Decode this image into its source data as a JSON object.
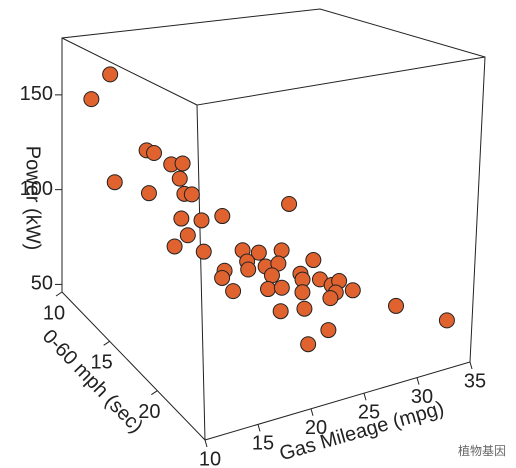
{
  "chart_data": {
    "type": "scatter3d",
    "xlabel": "Gas Mileage (mpg)",
    "ylabel": "0-60 mph (sec)",
    "zlabel": "Power (kW)",
    "x": [
      12.6,
      11.5,
      15.4,
      16.1,
      17.0,
      18.8,
      17.8,
      13.7,
      15.6,
      17.6,
      18.3,
      23.3,
      17.3,
      19.2,
      19.8,
      17.9,
      18.0,
      19.4,
      21.7,
      22.5,
      24.0,
      21.4,
      22.5,
      23.7,
      25.6,
      20.0,
      21.5,
      23.1,
      20.4,
      24.4,
      24.6,
      20.8,
      22.0,
      23.3,
      24.6,
      25.5,
      26.6,
      27.3,
      28.6,
      27.0,
      26.5,
      23.2,
      24.8,
      31.3,
      33.3,
      25.7,
      23.8
    ],
    "y": [
      12.3,
      11.5,
      13,
      13,
      13.8,
      13,
      13.8,
      11.5,
      13,
      14.5,
      14.5,
      19,
      14.5,
      14.5,
      16,
      14.5,
      13,
      14.5,
      16,
      16.8,
      17.5,
      16.8,
      17.5,
      17.5,
      19,
      16,
      16.8,
      17.5,
      15.3,
      19,
      19,
      16,
      18.3,
      18.3,
      19,
      19.8,
      19.8,
      19.8,
      19.8,
      19.8,
      19.8,
      18.3,
      19,
      21.3,
      24.3,
      20.5,
      20.5
    ],
    "z": [
      165,
      151,
      126,
      124,
      120,
      116,
      112,
      106,
      104,
      107,
      106,
      111,
      95,
      92,
      99,
      86,
      74,
      76,
      80,
      81,
      83,
      78,
      77,
      77,
      82,
      72,
      74,
      72,
      65,
      77,
      74,
      61,
      70,
      69,
      68,
      76,
      72,
      73,
      67,
      68,
      66,
      58,
      60,
      62,
      64,
      55,
      51
    ],
    "color": "#e0622f",
    "xlim": [
      10,
      35
    ],
    "xticks": [
      10,
      15,
      20,
      25,
      30,
      35
    ],
    "ylim": [
      10,
      25
    ],
    "yticks": [
      10,
      15,
      20
    ],
    "zlim": [
      46,
      180
    ],
    "zticks": [
      50,
      100,
      150
    ],
    "watermark": "植物基因"
  }
}
